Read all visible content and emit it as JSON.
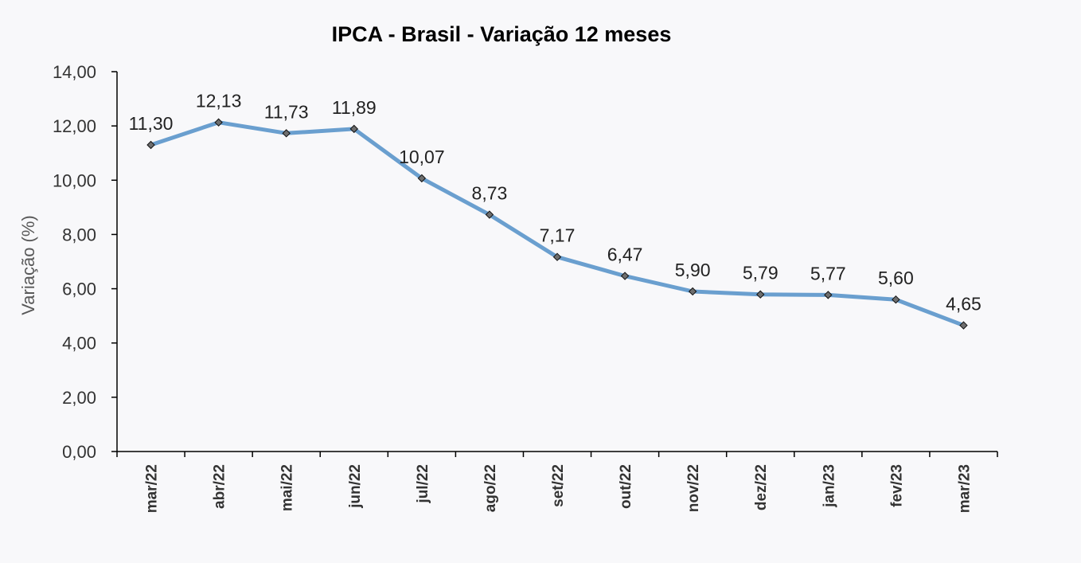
{
  "chart_data": {
    "type": "line",
    "title": "IPCA - Brasil - Variação 12 meses",
    "xlabel": "",
    "ylabel": "Variação (%)",
    "ylim": [
      0,
      14
    ],
    "y_ticks": [
      "0,00",
      "2,00",
      "4,00",
      "6,00",
      "8,00",
      "10,00",
      "12,00",
      "14,00"
    ],
    "categories": [
      "mar/22",
      "abr/22",
      "mai/22",
      "jun/22",
      "jul/22",
      "ago/22",
      "set/22",
      "out/22",
      "nov/22",
      "dez/22",
      "jan/23",
      "fev/23",
      "mar/23"
    ],
    "series": [
      {
        "values": [
          11.3,
          12.13,
          11.73,
          11.89,
          10.07,
          8.73,
          7.17,
          6.47,
          5.9,
          5.79,
          5.77,
          5.6,
          4.65
        ],
        "labels": [
          "11,30",
          "12,13",
          "11,73",
          "11,89",
          "10,07",
          "8,73",
          "7,17",
          "6,47",
          "5,90",
          "5,79",
          "5,77",
          "5,60",
          "4,65"
        ]
      }
    ],
    "grid": false,
    "legend": "none",
    "colors": {
      "line": "#6a9fcf",
      "marker": "#6e6e6e",
      "axis": "#000000",
      "background": "#f8f8fa"
    }
  }
}
